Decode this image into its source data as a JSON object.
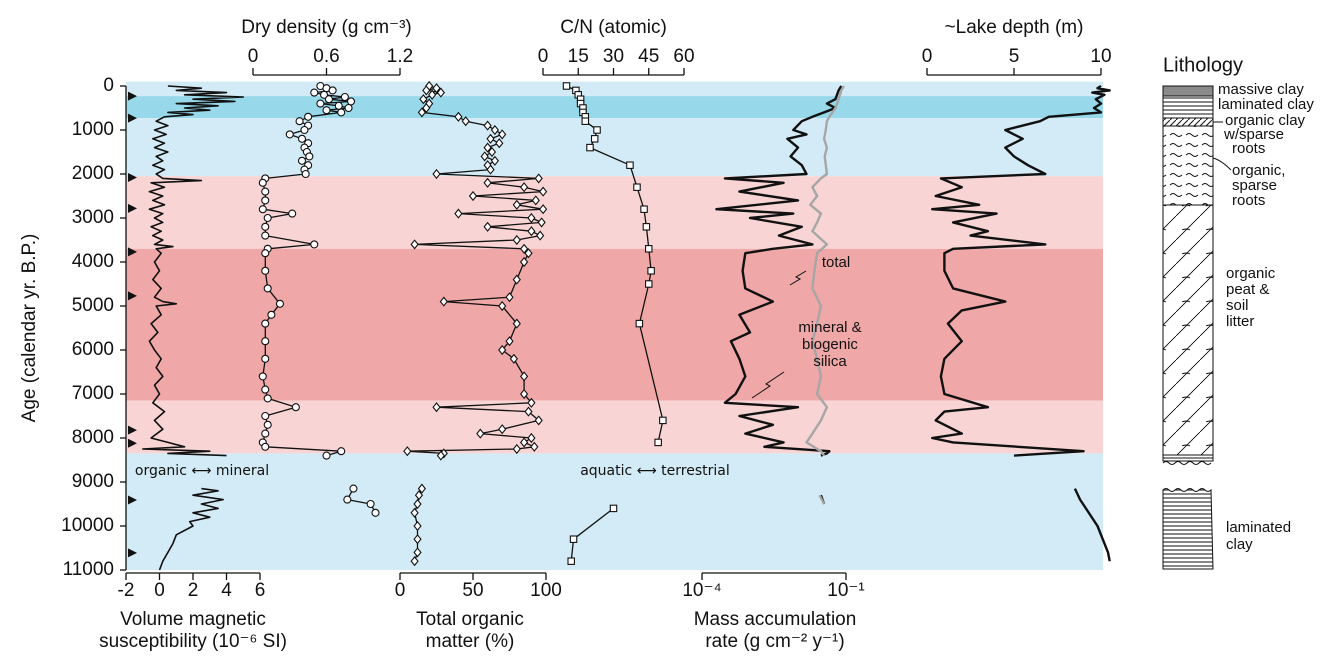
{
  "chart_data": [
    {
      "type": "line",
      "ylabel": "Age (calendar yr. B.P.)",
      "ylim": [
        0,
        11000
      ],
      "yticks": [
        0,
        1000,
        2000,
        3000,
        4000,
        5000,
        6000,
        7000,
        8000,
        9000,
        10000,
        11000
      ],
      "zones": [
        {
          "from": -100,
          "to": 230,
          "color": "#d3ebf6"
        },
        {
          "from": 230,
          "to": 730,
          "color": "#97d8ea"
        },
        {
          "from": 730,
          "to": 2050,
          "color": "#d3ebf6"
        },
        {
          "from": 2050,
          "to": 3700,
          "color": "#f8d4d4"
        },
        {
          "from": 3700,
          "to": 7150,
          "color": "#f0a7a7"
        },
        {
          "from": 7150,
          "to": 8350,
          "color": "#f8d4d4"
        },
        {
          "from": 8350,
          "to": 11000,
          "color": "#d3ebf6"
        }
      ],
      "date_markers": [
        230,
        730,
        2080,
        2780,
        3770,
        4770,
        7820,
        8120,
        9410,
        10610
      ],
      "xlabel": [
        "Volume magnetic",
        "susceptibility (10⁻⁶ SI)"
      ],
      "xlim": [
        -2,
        6
      ],
      "xticks": [
        -2,
        0,
        2,
        4,
        6
      ],
      "color": "#111111",
      "annotation": "organic ⟷ mineral",
      "y": [
        0,
        50,
        100,
        150,
        200,
        250,
        300,
        350,
        400,
        450,
        500,
        550,
        600,
        650,
        700,
        800,
        900,
        1000,
        1100,
        1200,
        1300,
        1400,
        1500,
        1600,
        1700,
        1800,
        1900,
        2000,
        2100,
        2150,
        2200,
        2300,
        2400,
        2500,
        2600,
        2700,
        2800,
        2900,
        3000,
        3100,
        3200,
        3300,
        3400,
        3500,
        3600,
        3650,
        3700,
        3800,
        4000,
        4200,
        4400,
        4600,
        4800,
        4900,
        4950,
        5000,
        5200,
        5400,
        5600,
        5800,
        6000,
        6200,
        6400,
        6600,
        6800,
        7000,
        7200,
        7400,
        7600,
        7800,
        8000,
        8100,
        8200,
        8250,
        8300,
        8350,
        8400,
        8700,
        9150,
        9200,
        9300,
        9400,
        9500,
        9600,
        9700,
        9800,
        9900,
        10000,
        10200,
        10400,
        10600,
        10800,
        11000
      ],
      "values": [
        0.5,
        2.5,
        1.0,
        4.0,
        1.5,
        5.0,
        2.0,
        4.5,
        1.0,
        3.5,
        1.5,
        3.0,
        0.5,
        2.0,
        0.3,
        -0.2,
        0.5,
        -0.3,
        0.4,
        -0.4,
        0.3,
        -0.3,
        0.5,
        -0.2,
        0.2,
        -0.4,
        0.3,
        -0.2,
        0.2,
        2.5,
        -0.5,
        0.3,
        -0.6,
        0.2,
        -0.4,
        0.3,
        -0.6,
        0.2,
        -0.3,
        0.2,
        -0.5,
        0.1,
        -0.4,
        0.2,
        -0.3,
        0.8,
        -0.2,
        0.1,
        -0.3,
        0,
        -0.4,
        0.1,
        -0.3,
        0.2,
        1.0,
        -0.2,
        0.1,
        -0.5,
        -0.1,
        -0.6,
        -0.3,
        0.1,
        -0.2,
        0.2,
        -0.3,
        0,
        -0.4,
        0.3,
        -0.3,
        0.2,
        -0.5,
        0.5,
        1.5,
        -1.0,
        3.0,
        0.5,
        4.0,
        null,
        2.5,
        3.5,
        2.0,
        3.8,
        2.5,
        3.5,
        2.0,
        3.0,
        1.8,
        2.0,
        1.0,
        0.8,
        0.5,
        0.2,
        0
      ]
    },
    {
      "type": "line",
      "title": "Dry density (g cm⁻³)",
      "xlim": [
        0,
        1.2
      ],
      "xticks": [
        0,
        0.6,
        1.2
      ],
      "marker": "circle",
      "color": "#111111",
      "y": [
        0,
        50,
        100,
        150,
        200,
        250,
        300,
        350,
        400,
        450,
        500,
        550,
        600,
        700,
        800,
        900,
        1000,
        1100,
        1200,
        1300,
        1400,
        1500,
        1600,
        1700,
        1800,
        1900,
        2000,
        2100,
        2200,
        2400,
        2600,
        2800,
        2900,
        3000,
        3200,
        3400,
        3600,
        3700,
        3800,
        4200,
        4600,
        4950,
        5200,
        5400,
        5800,
        6200,
        6600,
        6900,
        7100,
        7300,
        7500,
        7700,
        7900,
        8100,
        8200,
        8300,
        8400,
        8700,
        9150,
        9400,
        9500,
        9700
      ],
      "values": [
        0.55,
        0.6,
        0.65,
        0.5,
        0.58,
        0.75,
        0.62,
        0.8,
        0.55,
        0.7,
        0.78,
        0.6,
        0.72,
        0.45,
        0.38,
        0.45,
        0.42,
        0.3,
        0.4,
        0.45,
        0.42,
        0.44,
        0.46,
        0.4,
        0.45,
        0.42,
        0.43,
        0.1,
        0.08,
        0.1,
        0.1,
        0.08,
        0.32,
        0.12,
        0.1,
        0.1,
        0.5,
        0.12,
        0.1,
        0.1,
        0.12,
        0.22,
        0.15,
        0.1,
        0.1,
        0.1,
        0.08,
        0.1,
        0.12,
        0.35,
        0.1,
        0.12,
        0.1,
        0.08,
        0.1,
        0.72,
        0.6,
        null,
        0.82,
        0.77,
        0.96,
        1.0
      ]
    },
    {
      "type": "line",
      "xlabel": [
        "Total organic",
        "matter (%)"
      ],
      "xlim": [
        0,
        100
      ],
      "xticks": [
        0,
        50,
        100
      ],
      "marker": "diamond",
      "color": "#111111",
      "y": [
        0,
        50,
        100,
        150,
        200,
        300,
        400,
        500,
        600,
        700,
        800,
        900,
        1000,
        1100,
        1200,
        1300,
        1400,
        1500,
        1600,
        1700,
        1800,
        1900,
        2000,
        2100,
        2200,
        2300,
        2400,
        2500,
        2600,
        2700,
        2800,
        2900,
        3000,
        3100,
        3200,
        3300,
        3400,
        3500,
        3600,
        3700,
        3800,
        4000,
        4400,
        4800,
        4900,
        5000,
        5400,
        5800,
        6000,
        6200,
        6600,
        7000,
        7200,
        7300,
        7400,
        7600,
        7800,
        7900,
        8000,
        8100,
        8200,
        8250,
        8300,
        8350,
        8400,
        8700,
        9150,
        9300,
        9500,
        9700,
        10000,
        10300,
        10600,
        10800
      ],
      "values": [
        20,
        25,
        18,
        28,
        22,
        16,
        20,
        18,
        15,
        40,
        45,
        60,
        65,
        70,
        62,
        68,
        60,
        63,
        58,
        65,
        60,
        62,
        25,
        95,
        60,
        85,
        98,
        50,
        93,
        80,
        98,
        40,
        90,
        97,
        60,
        90,
        96,
        80,
        10,
        85,
        88,
        85,
        80,
        75,
        30,
        70,
        80,
        75,
        70,
        78,
        85,
        85,
        90,
        25,
        88,
        95,
        70,
        55,
        90,
        85,
        92,
        80,
        5,
        30,
        28,
        null,
        15,
        13,
        12,
        10,
        12,
        12,
        12,
        10
      ]
    },
    {
      "type": "line",
      "title": "C/N (atomic)",
      "xlim": [
        0,
        60
      ],
      "xticks": [
        0,
        15,
        30,
        45,
        60
      ],
      "marker": "square",
      "color": "#111111",
      "annotation": "aquatic ⟷ terrestrial",
      "y": [
        0,
        100,
        200,
        300,
        400,
        500,
        600,
        700,
        800,
        1000,
        1200,
        1400,
        1800,
        2300,
        2800,
        3200,
        3700,
        4200,
        4500,
        5400,
        7600,
        8100,
        8700,
        9600,
        10300,
        10800
      ],
      "values": [
        10,
        14,
        15,
        16,
        16,
        17,
        17,
        18,
        18,
        23,
        22,
        20,
        37,
        40,
        43,
        44,
        45,
        46,
        45,
        41,
        51,
        49,
        null,
        30,
        13,
        12
      ]
    },
    {
      "type": "line",
      "xlabel": [
        "Mass accumulation",
        "rate (g cm⁻² y⁻¹)"
      ],
      "xscale": "log",
      "xlim": [
        0.0001,
        0.1
      ],
      "xticks": [
        {
          "value": 0.0001,
          "label": "10⁻⁴"
        },
        {
          "value": 0.1,
          "label": "10⁻¹"
        }
      ],
      "annotations": [
        [
          "total"
        ],
        [
          "mineral &",
          "biogenic",
          "silica"
        ]
      ],
      "series": [
        {
          "color": "#111111",
          "y": [
            0,
            100,
            200,
            300,
            400,
            500,
            600,
            700,
            800,
            1000,
            1100,
            1200,
            1400,
            1600,
            1800,
            2000,
            2100,
            2200,
            2400,
            2600,
            2800,
            2900,
            3000,
            3200,
            3400,
            3600,
            3700,
            3800,
            4200,
            4600,
            4900,
            5200,
            5600,
            5800,
            6200,
            6600,
            7000,
            7200,
            7300,
            7500,
            7700,
            7900,
            8100,
            8200,
            8300,
            8350,
            8400,
            8700,
            9300,
            9500
          ],
          "values": [
            0.08,
            0.07,
            0.065,
            0.06,
            0.04,
            0.06,
            0.035,
            0.02,
            0.012,
            0.008,
            0.015,
            0.006,
            0.01,
            0.007,
            0.012,
            0.015,
            0.0003,
            0.005,
            0.0006,
            0.01,
            0.0002,
            0.008,
            0.001,
            0.012,
            0.004,
            0.02,
            0.003,
            0.0008,
            0.0007,
            0.0008,
            0.003,
            0.0006,
            0.001,
            0.0004,
            0.0006,
            0.0008,
            0.0005,
            0.0003,
            0.01,
            0.0006,
            0.003,
            0.0008,
            0.005,
            0.002,
            0.045,
            0.04,
            0.03,
            null,
            0.03,
            0.035
          ]
        },
        {
          "color": "#a6a6a6",
          "y": [
            0,
            100,
            300,
            500,
            700,
            800,
            1000,
            1200,
            1400,
            1600,
            1800,
            2000,
            2100,
            2300,
            2500,
            2700,
            2900,
            3100,
            3300,
            3600,
            3800,
            4200,
            4600,
            5000,
            5400,
            5800,
            6200,
            6600,
            7000,
            7300,
            7600,
            7900,
            8100,
            8300,
            8400,
            8700,
            9300,
            9500
          ],
          "values": [
            0.09,
            0.08,
            0.07,
            0.06,
            0.045,
            0.04,
            0.038,
            0.035,
            0.04,
            0.036,
            0.038,
            0.04,
            0.03,
            0.02,
            0.025,
            0.018,
            0.03,
            0.025,
            0.02,
            0.04,
            0.025,
            0.022,
            0.02,
            0.03,
            0.025,
            0.02,
            0.025,
            0.03,
            0.025,
            0.04,
            0.03,
            0.02,
            0.015,
            0.03,
            0.035,
            null,
            0.028,
            0.035
          ]
        }
      ]
    },
    {
      "type": "line",
      "title": "~Lake depth (m)",
      "xlim": [
        0,
        10
      ],
      "xticks": [
        0,
        5,
        10
      ],
      "color": "#111111",
      "y": [
        0,
        50,
        100,
        150,
        200,
        300,
        400,
        500,
        600,
        700,
        800,
        1000,
        1100,
        1200,
        1400,
        1600,
        1800,
        2000,
        2100,
        2300,
        2500,
        2700,
        2800,
        2900,
        3100,
        3300,
        3400,
        3600,
        3700,
        3800,
        4200,
        4600,
        4900,
        5100,
        5400,
        5800,
        6200,
        6600,
        7000,
        7300,
        7400,
        7600,
        7900,
        8000,
        8100,
        8300,
        8400,
        8700,
        9150,
        9400,
        10000,
        10600,
        10800
      ],
      "values": [
        10,
        9.8,
        10.5,
        9.5,
        10.2,
        9.7,
        10,
        9.6,
        10,
        7,
        6.5,
        4.5,
        5,
        5.5,
        4.5,
        5,
        5.8,
        6.8,
        0.8,
        2,
        0.5,
        3,
        0.3,
        4,
        1.5,
        3.5,
        2.5,
        6.8,
        1.5,
        1,
        1,
        1.5,
        4.5,
        2,
        1.2,
        2,
        1,
        0.8,
        1,
        3.5,
        1,
        0.5,
        2,
        0.3,
        1.5,
        9,
        5,
        null,
        8.5,
        8.8,
        9.8,
        10.4,
        10.5
      ]
    }
  ],
  "lithology": {
    "title": "Lithology",
    "units": [
      [
        "massive clay"
      ],
      [
        "laminated clay"
      ],
      [
        "organic clay",
        "w/sparse",
        "roots"
      ],
      [
        "organic,",
        "sparse",
        "roots"
      ],
      [
        "organic",
        "peat &",
        "soil",
        "litter"
      ],
      [
        "laminated",
        "clay"
      ]
    ]
  }
}
